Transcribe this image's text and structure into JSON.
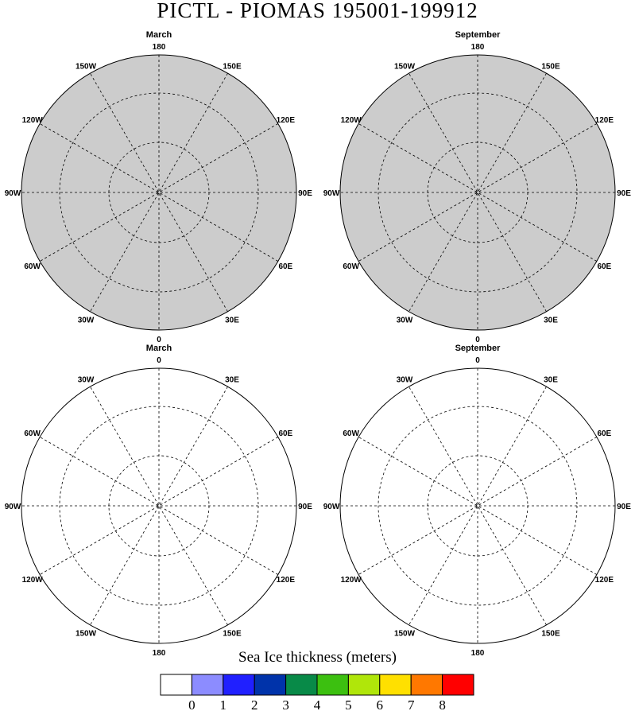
{
  "title": "PICTL - PIOMAS 195001-199912",
  "panels": [
    {
      "name": "arctic-march",
      "title": "March",
      "hemisphere": "north",
      "lon_labels": [
        "180",
        "150E",
        "120E",
        "90E",
        "60E",
        "30E",
        "0",
        "30W",
        "60W",
        "90W",
        "120W",
        "150W"
      ]
    },
    {
      "name": "arctic-september",
      "title": "September",
      "hemisphere": "north",
      "lon_labels": [
        "180",
        "150E",
        "120E",
        "90E",
        "60E",
        "30E",
        "0",
        "30W",
        "60W",
        "90W",
        "120W",
        "150W"
      ]
    },
    {
      "name": "antarctic-march",
      "title": "March",
      "hemisphere": "south",
      "lon_labels": [
        "0",
        "30E",
        "60E",
        "90E",
        "120E",
        "150E",
        "180",
        "150W",
        "120W",
        "90W",
        "60W",
        "30W"
      ]
    },
    {
      "name": "antarctic-september",
      "title": "September",
      "hemisphere": "south",
      "lon_labels": [
        "0",
        "30E",
        "60E",
        "90E",
        "120E",
        "150E",
        "180",
        "150W",
        "120W",
        "90W",
        "60W",
        "30W"
      ]
    }
  ],
  "colorbar": {
    "title": "Sea Ice thickness (meters)",
    "labels": [
      "0",
      "1",
      "2",
      "3",
      "4",
      "5",
      "6",
      "7",
      "8"
    ],
    "colors": [
      "#ffffff",
      "#8c8cff",
      "#2020ff",
      "#0033aa",
      "#088a48",
      "#3cc010",
      "#b0e60a",
      "#ffe000",
      "#ff7800",
      "#ff0000"
    ]
  },
  "colors": {
    "land": "#cccccc",
    "ocean": "#ffffff"
  }
}
